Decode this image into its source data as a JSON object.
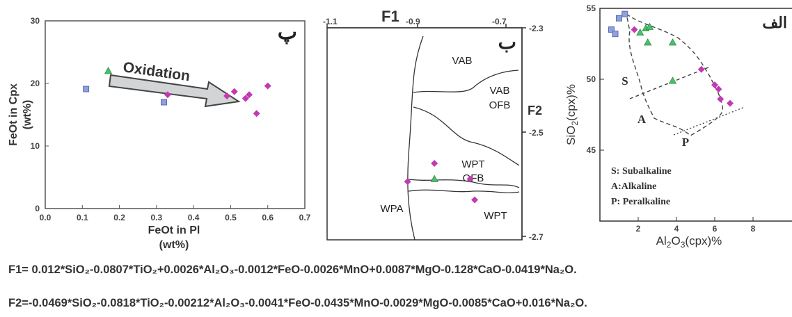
{
  "chart_data": [
    {
      "id": "left",
      "type": "scatter",
      "panel_label": "پ",
      "xlabel": "FeOt in Pl",
      "xlabel2": "(wt%)",
      "ylabel": "FeOt in Cpx",
      "ylabel2": "(wt%)",
      "xlim": [
        0,
        0.7
      ],
      "ylim": [
        0,
        30
      ],
      "xticks": [
        "0.0",
        "0.1",
        "0.2",
        "0.3",
        "0.4",
        "0.5",
        "0.6",
        "0.7"
      ],
      "yticks": [
        "0",
        "10",
        "20",
        "30"
      ],
      "annotation": "Oxidation",
      "series": [
        {
          "marker": "square",
          "color": "#8fa0dc",
          "points": [
            [
              0.11,
              19.1
            ],
            [
              0.32,
              17.0
            ]
          ]
        },
        {
          "marker": "triangle",
          "color": "#4cbf6a",
          "points": [
            [
              0.17,
              22.0
            ]
          ]
        },
        {
          "marker": "diamond",
          "color": "#c23ab2",
          "points": [
            [
              0.33,
              18.2
            ],
            [
              0.49,
              18.0
            ],
            [
              0.51,
              18.7
            ],
            [
              0.54,
              17.6
            ],
            [
              0.55,
              18.2
            ],
            [
              0.57,
              15.2
            ],
            [
              0.6,
              19.6
            ]
          ]
        }
      ]
    },
    {
      "id": "middle",
      "type": "scatter",
      "panel_label": "ب",
      "xlabel": "F1",
      "ylabel": "F2",
      "xlim": [
        -1.1,
        -0.7
      ],
      "ylim": [
        -2.7,
        -2.3
      ],
      "xticks": [
        "-1.1",
        "-0.9",
        "-0.7"
      ],
      "yticks": [
        "-2.3",
        "-2.5",
        "-2.7"
      ],
      "fields": [
        "VAB",
        "VAB",
        "OFB",
        "WPT",
        "OFB",
        "WPA",
        "WPT"
      ],
      "series": [
        {
          "marker": "triangle",
          "color": "#4cbf6a",
          "points": [
            [
              -0.86,
              -2.59
            ]
          ]
        },
        {
          "marker": "diamond",
          "color": "#c23ab2",
          "points": [
            [
              -0.92,
              -2.595
            ],
            [
              -0.86,
              -2.56
            ],
            [
              -0.78,
              -2.59
            ],
            [
              -0.77,
              -2.63
            ]
          ]
        }
      ]
    },
    {
      "id": "right",
      "type": "scatter",
      "panel_label": "الف",
      "xlabel": "Al2O3(cpx)%",
      "ylabel": "SiO2(cpx)%",
      "xlim": [
        0,
        10
      ],
      "ylim": [
        40,
        55
      ],
      "xticks": [
        "2",
        "4",
        "6",
        "8"
      ],
      "yticks": [
        "55",
        "50",
        "45"
      ],
      "fields": [
        "S",
        "A",
        "P"
      ],
      "legend": [
        "S: Subalkaline",
        "A:Alkaline",
        "P: Peralkaline"
      ],
      "series": [
        {
          "marker": "square",
          "color": "#8fa0dc",
          "points": [
            [
              0.6,
              53.5
            ],
            [
              0.8,
              53.2
            ],
            [
              1.0,
              54.3
            ],
            [
              1.3,
              54.6
            ]
          ]
        },
        {
          "marker": "triangle",
          "color": "#4cbf6a",
          "points": [
            [
              2.1,
              53.3
            ],
            [
              2.4,
              53.6
            ],
            [
              2.6,
              53.7
            ],
            [
              2.5,
              52.6
            ],
            [
              3.8,
              52.6
            ],
            [
              3.8,
              49.9
            ]
          ]
        },
        {
          "marker": "diamond",
          "color": "#c23ab2",
          "points": [
            [
              1.8,
              53.5
            ],
            [
              5.3,
              50.7
            ],
            [
              6.0,
              49.6
            ],
            [
              6.2,
              49.3
            ],
            [
              6.3,
              48.6
            ],
            [
              6.8,
              48.3
            ]
          ]
        }
      ]
    }
  ],
  "formulas": [
    "F1= 0.012*SiO₂-0.0807*TiO₂+0.0026*Al₂O₃-0.0012*FeO-0.0026*MnO+0.0087*MgO-0.128*CaO-0.0419*Na₂O.",
    "F2=-0.0469*SiO₂-0.0818*TiO₂-0.00212*Al₂O₃-0.0041*FeO-0.0435*MnO-0.0029*MgO-0.0085*CaO+0.016*Na₂O."
  ]
}
